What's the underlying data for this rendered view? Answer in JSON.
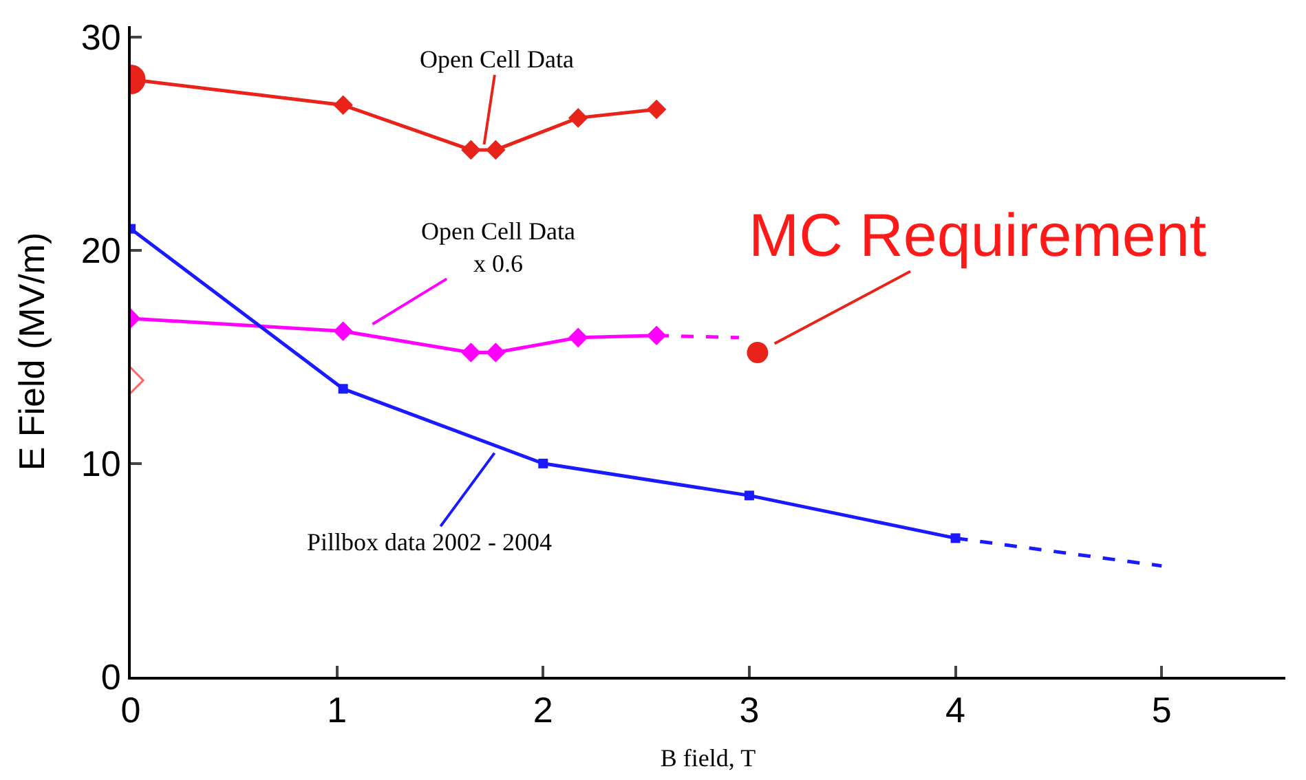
{
  "chart_data": {
    "type": "line",
    "xlabel": "B field, T",
    "ylabel": "E Field (MV/m)",
    "xlim": [
      0,
      5.6
    ],
    "ylim": [
      0,
      30.5
    ],
    "xticks": [
      0,
      1,
      2,
      3,
      4,
      5
    ],
    "yticks": [
      0,
      10,
      20,
      30
    ],
    "grid": false,
    "series": [
      {
        "color": "#e8231a",
        "x": [
          0,
          1.03,
          1.65,
          1.77,
          2.17,
          2.55
        ],
        "values": [
          28.0,
          26.8,
          24.7,
          24.7,
          26.2,
          26.6
        ],
        "marker": "diamond",
        "line_style": "solid"
      },
      {
        "type": "scatter",
        "color": "#e8231a",
        "x": [
          0
        ],
        "values": [
          28.0
        ],
        "marker": "circle"
      },
      {
        "color": "#ff00ff",
        "x": [
          0,
          1.03,
          1.65,
          1.77,
          2.17,
          2.55
        ],
        "values": [
          16.8,
          16.2,
          15.2,
          15.2,
          15.9,
          16.0
        ],
        "marker": "diamond",
        "line_style": "solid"
      },
      {
        "color": "#ff00ff",
        "x": [
          2.55,
          2.95
        ],
        "values": [
          16.0,
          15.9
        ],
        "marker": "none",
        "line_style": "dashed"
      },
      {
        "color": "#1a1aff",
        "x": [
          0,
          1.03,
          2.0,
          3.0,
          4.0
        ],
        "values": [
          21.0,
          13.5,
          10.0,
          8.5,
          6.5
        ],
        "marker": "square",
        "line_style": "solid"
      },
      {
        "color": "#1a1aff",
        "x": [
          4.0,
          5.0
        ],
        "values": [
          6.5,
          5.2
        ],
        "marker": "none",
        "line_style": "dashed"
      },
      {
        "type": "scatter",
        "color": "#e8231a",
        "x": [
          3.04
        ],
        "values": [
          15.2
        ],
        "marker": "circle"
      },
      {
        "type": "scatter",
        "color": "#ff6666",
        "x": [
          0
        ],
        "values": [
          13.9
        ],
        "marker": "diamond"
      }
    ],
    "annotations": [
      {
        "text": "Open Cell Data",
        "x": 1.71,
        "y": 24.7
      },
      {
        "text": "Open Cell Data\nx 0.6",
        "x": 1.15,
        "y": 16.4
      },
      {
        "text": "MC Requirement",
        "x": 3.04,
        "y": 15.2
      },
      {
        "text": "Pillbox data 2002 - 2004",
        "x": 1.78,
        "y": 10.7
      }
    ]
  }
}
